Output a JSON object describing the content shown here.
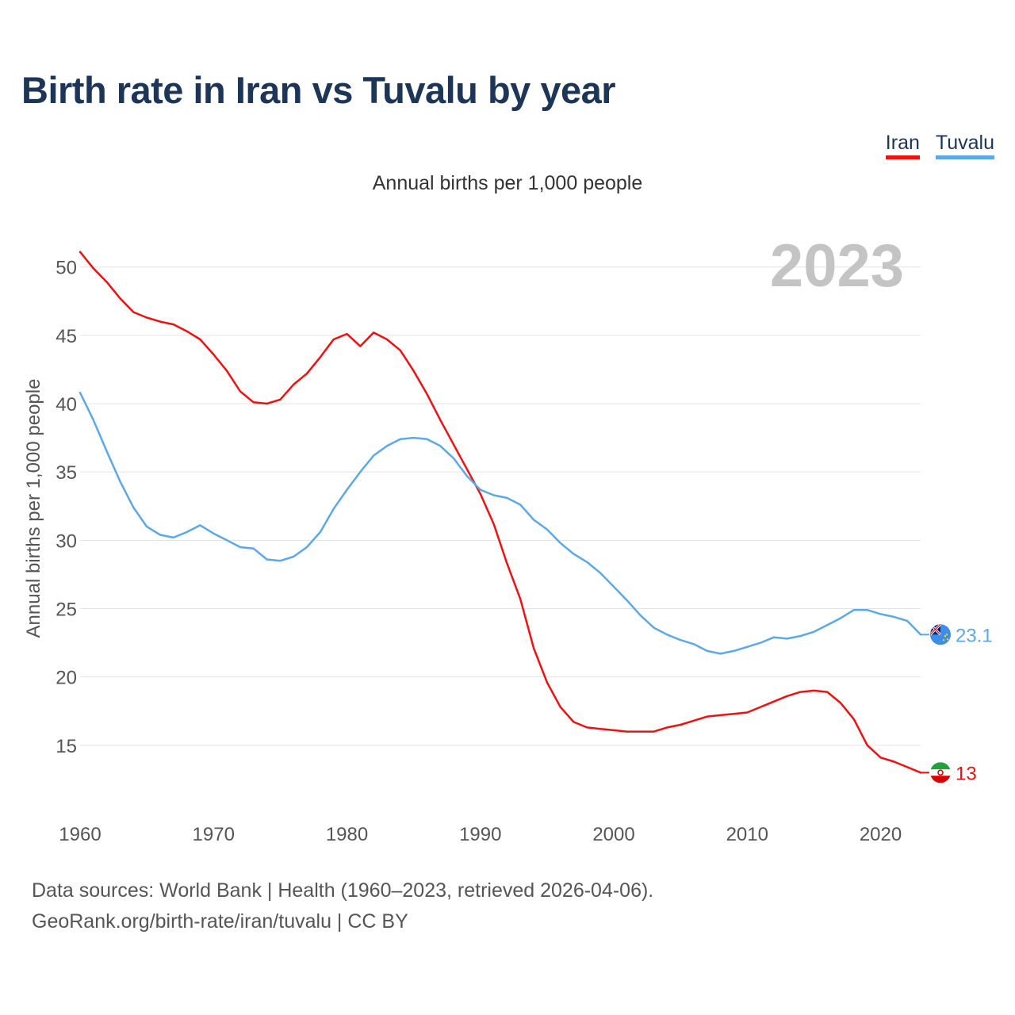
{
  "title": "Birth rate in Iran vs Tuvalu by year",
  "legend": [
    {
      "label": "Iran",
      "color": "#ee1111"
    },
    {
      "label": "Tuvalu",
      "color": "#5da8e6"
    }
  ],
  "subtitle": "Annual births per 1,000 people",
  "year_label": "2023",
  "footer": {
    "line1": "Data sources: World Bank | Health (1960–2023, retrieved 2026-04-06).",
    "line2": "GeoRank.org/birth-rate/iran/tuvalu | CC BY"
  },
  "chart_data": {
    "type": "line",
    "title": "Birth rate in Iran vs Tuvalu by year",
    "xlabel": "",
    "ylabel": "Annual births per 1,000 people",
    "xlim": [
      1960,
      2023
    ],
    "ylim": [
      10,
      53
    ],
    "x_ticks": [
      1960,
      1970,
      1980,
      1990,
      2000,
      2010,
      2020
    ],
    "y_ticks": [
      15,
      20,
      25,
      30,
      35,
      40,
      45,
      50
    ],
    "grid": true,
    "legend_position": "top-right",
    "x": [
      1960,
      1961,
      1962,
      1963,
      1964,
      1965,
      1966,
      1967,
      1968,
      1969,
      1970,
      1971,
      1972,
      1973,
      1974,
      1975,
      1976,
      1977,
      1978,
      1979,
      1980,
      1981,
      1982,
      1983,
      1984,
      1985,
      1986,
      1987,
      1988,
      1989,
      1990,
      1991,
      1992,
      1993,
      1994,
      1995,
      1996,
      1997,
      1998,
      1999,
      2000,
      2001,
      2002,
      2003,
      2004,
      2005,
      2006,
      2007,
      2008,
      2009,
      2010,
      2011,
      2012,
      2013,
      2014,
      2015,
      2016,
      2017,
      2018,
      2019,
      2020,
      2021,
      2022,
      2023
    ],
    "series": [
      {
        "name": "Iran",
        "color": "#ee1111",
        "end_label": "13",
        "values": [
          51.1,
          49.9,
          48.9,
          47.7,
          46.7,
          46.3,
          46.0,
          45.8,
          45.3,
          44.7,
          43.6,
          42.4,
          40.9,
          40.1,
          40.0,
          40.3,
          41.4,
          42.2,
          43.4,
          44.7,
          45.1,
          44.2,
          45.2,
          44.7,
          43.9,
          42.4,
          40.7,
          38.8,
          37.0,
          35.2,
          33.4,
          31.2,
          28.3,
          25.7,
          22.1,
          19.6,
          17.8,
          16.7,
          16.3,
          16.2,
          16.1,
          16.0,
          16.0,
          16.0,
          16.3,
          16.5,
          16.8,
          17.1,
          17.2,
          17.3,
          17.4,
          17.8,
          18.2,
          18.6,
          18.9,
          19.0,
          18.9,
          18.1,
          16.9,
          15.0,
          14.1,
          13.8,
          13.4,
          13.0
        ]
      },
      {
        "name": "Tuvalu",
        "color": "#5da8e6",
        "end_label": "23.1",
        "values": [
          40.8,
          38.8,
          36.5,
          34.3,
          32.4,
          31.0,
          30.4,
          30.2,
          30.6,
          31.1,
          30.5,
          30.0,
          29.5,
          29.4,
          28.6,
          28.5,
          28.8,
          29.5,
          30.6,
          32.3,
          33.7,
          35.0,
          36.2,
          36.9,
          37.4,
          37.5,
          37.4,
          36.9,
          36.0,
          34.7,
          33.7,
          33.3,
          33.1,
          32.6,
          31.5,
          30.8,
          29.8,
          29.0,
          28.4,
          27.6,
          26.6,
          25.6,
          24.5,
          23.6,
          23.1,
          22.7,
          22.4,
          21.9,
          21.7,
          21.9,
          22.2,
          22.5,
          22.9,
          22.8,
          23.0,
          23.3,
          23.8,
          24.3,
          24.9,
          24.9,
          24.6,
          24.4,
          24.1,
          23.1
        ]
      }
    ]
  }
}
